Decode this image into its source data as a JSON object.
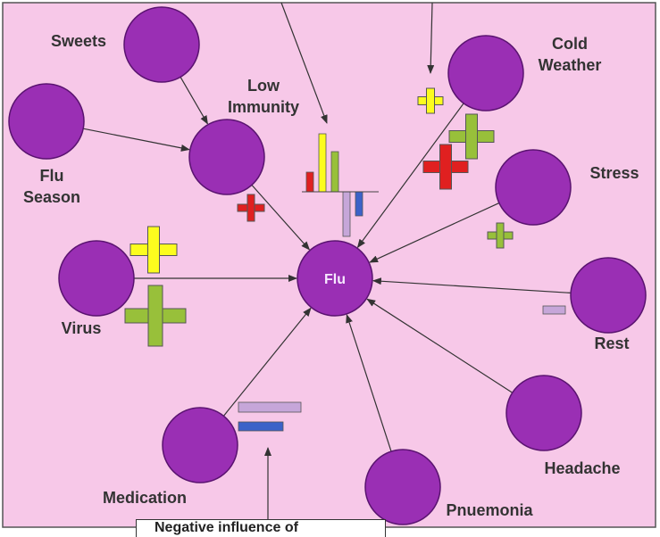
{
  "colors": {
    "background": "#f7c8e8",
    "node_fill": "#9a2fb4",
    "node_stroke": "#5a1370",
    "label": "#333333",
    "arrow": "#333333",
    "yellow": "#fcfc1e",
    "green": "#98c03a",
    "red": "#e02020",
    "lavender": "#c6a6d9",
    "blue": "#3b62c8"
  },
  "center_node": {
    "id": "flu",
    "label": "Flu"
  },
  "nodes": [
    {
      "id": "sweets",
      "label": "Sweets"
    },
    {
      "id": "low-immunity",
      "label": "Low Immunity"
    },
    {
      "id": "flu-season",
      "label": "Flu Season"
    },
    {
      "id": "cold-weather",
      "label": "Cold Weather"
    },
    {
      "id": "stress",
      "label": "Stress"
    },
    {
      "id": "virus",
      "label": "Virus"
    },
    {
      "id": "rest",
      "label": "Rest"
    },
    {
      "id": "headache",
      "label": "Headache"
    },
    {
      "id": "pnuemonia",
      "label": "Pnuemonia"
    },
    {
      "id": "medication",
      "label": "Medication"
    }
  ],
  "edges": [
    {
      "from": "sweets",
      "to": "low-immunity"
    },
    {
      "from": "flu-season",
      "to": "low-immunity"
    },
    {
      "from": "low-immunity",
      "to": "flu"
    },
    {
      "from": "cold-weather",
      "to": "flu"
    },
    {
      "from": "stress",
      "to": "flu"
    },
    {
      "from": "virus",
      "to": "flu"
    },
    {
      "from": "rest",
      "to": "flu"
    },
    {
      "from": "headache",
      "to": "flu"
    },
    {
      "from": "pnuemonia",
      "to": "flu"
    },
    {
      "from": "medication",
      "to": "flu"
    }
  ],
  "bottom_label_text": "Negative influence of"
}
